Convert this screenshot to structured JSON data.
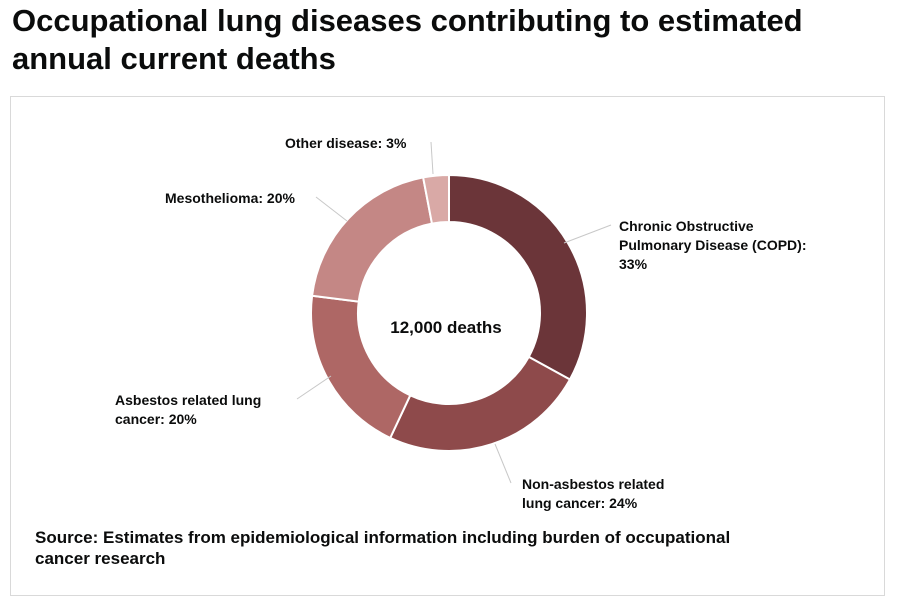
{
  "chart_data": {
    "type": "pie",
    "title": "Occupational lung diseases contributing to estimated annual current deaths",
    "center_label": "12,000 deaths",
    "start_angle_deg": 0,
    "slices": [
      {
        "label": "Chronic Obstructive Pulmonary Disease (COPD): 33%",
        "value": 33,
        "color": "#6b3539"
      },
      {
        "label": "Non-asbestos related lung cancer: 24%",
        "value": 24,
        "color": "#8e4a4b"
      },
      {
        "label": "Asbestos related lung cancer: 20%",
        "value": 20,
        "color": "#ae6765"
      },
      {
        "label": "Mesothelioma: 20%",
        "value": 20,
        "color": "#c48785"
      },
      {
        "label": "Other disease: 3%",
        "value": 3,
        "color": "#d9a9a6"
      }
    ],
    "source": "Source: Estimates from epidemiological information including burden of occupational cancer research"
  }
}
